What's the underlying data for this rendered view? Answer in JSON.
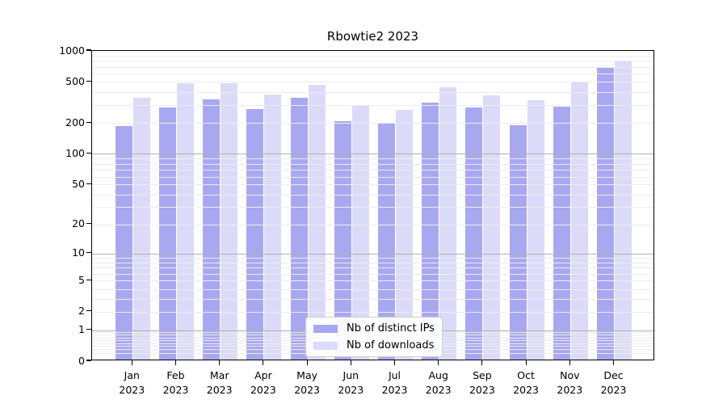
{
  "title": "Rbowtie2 2023",
  "y_axis": {
    "tick_values": [
      1000,
      500,
      200,
      100,
      50,
      20,
      10,
      5,
      2,
      1,
      0
    ]
  },
  "x_axis": {
    "year": "2023",
    "months": [
      "Jan",
      "Feb",
      "Mar",
      "Apr",
      "May",
      "Jun",
      "Jul",
      "Aug",
      "Sep",
      "Oct",
      "Nov",
      "Dec"
    ]
  },
  "legend": {
    "items": [
      {
        "label": "Nb of distinct IPs",
        "color": "#a8a8f0"
      },
      {
        "label": "Nb of downloads",
        "color": "#dbdbf9"
      }
    ]
  },
  "colors": {
    "distinct_ips_bar": "#a8a8f0",
    "downloads_bar": "#dbdbf9",
    "major_gridline": "#b0b0b0",
    "minor_gridline": "#ececec",
    "axis": "#000000"
  },
  "chart_data": {
    "type": "bar",
    "title": "Rbowtie2 2023",
    "categories": [
      "Jan 2023",
      "Feb 2023",
      "Mar 2023",
      "Apr 2023",
      "May 2023",
      "Jun 2023",
      "Jul 2023",
      "Aug 2023",
      "Sep 2023",
      "Oct 2023",
      "Nov 2023",
      "Dec 2023"
    ],
    "series": [
      {
        "name": "Nb of distinct IPs",
        "color": "#a8a8f0",
        "values": [
          181,
          271,
          325,
          265,
          339,
          201,
          190,
          302,
          275,
          183,
          279,
          657
        ]
      },
      {
        "name": "Nb of downloads",
        "color": "#dbdbf9",
        "values": [
          341,
          469,
          469,
          364,
          450,
          283,
          260,
          428,
          355,
          321,
          480,
          777
        ]
      }
    ],
    "yscale": "log1p",
    "ylim": [
      0,
      1000
    ],
    "yticks": [
      1000,
      500,
      200,
      100,
      50,
      20,
      10,
      5,
      2,
      1,
      0
    ],
    "xlabel": "",
    "ylabel": "",
    "grid": true,
    "legend_position": "lower center"
  }
}
